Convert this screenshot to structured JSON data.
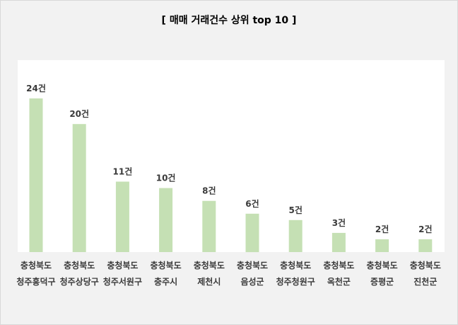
{
  "chart_data": {
    "type": "bar",
    "title": "[ 매매 거래건수 상위 top 10 ]",
    "categories": [
      [
        "충청북도",
        "청주흥덕구"
      ],
      [
        "충청북도",
        "청주상당구"
      ],
      [
        "충청북도",
        "청주서원구"
      ],
      [
        "충청북도",
        "충주시"
      ],
      [
        "충청북도",
        "제천시"
      ],
      [
        "충청북도",
        "음성군"
      ],
      [
        "충청북도",
        "청주청원구"
      ],
      [
        "충청북도",
        "옥천군"
      ],
      [
        "충청북도",
        "증평군"
      ],
      [
        "충청북도",
        "진천군"
      ]
    ],
    "values": [
      24,
      20,
      11,
      10,
      8,
      6,
      5,
      3,
      2,
      2
    ],
    "data_labels": [
      "24건",
      "20건",
      "11건",
      "10건",
      "8건",
      "6건",
      "5건",
      "3건",
      "2건",
      "2건"
    ],
    "xlabel": "",
    "ylabel": "",
    "ylim": [
      0,
      30
    ],
    "grid": false,
    "legend": "none",
    "bar_color": "#c5e0b4",
    "background": "#f2f2f2",
    "plot_background": "#ffffff"
  }
}
